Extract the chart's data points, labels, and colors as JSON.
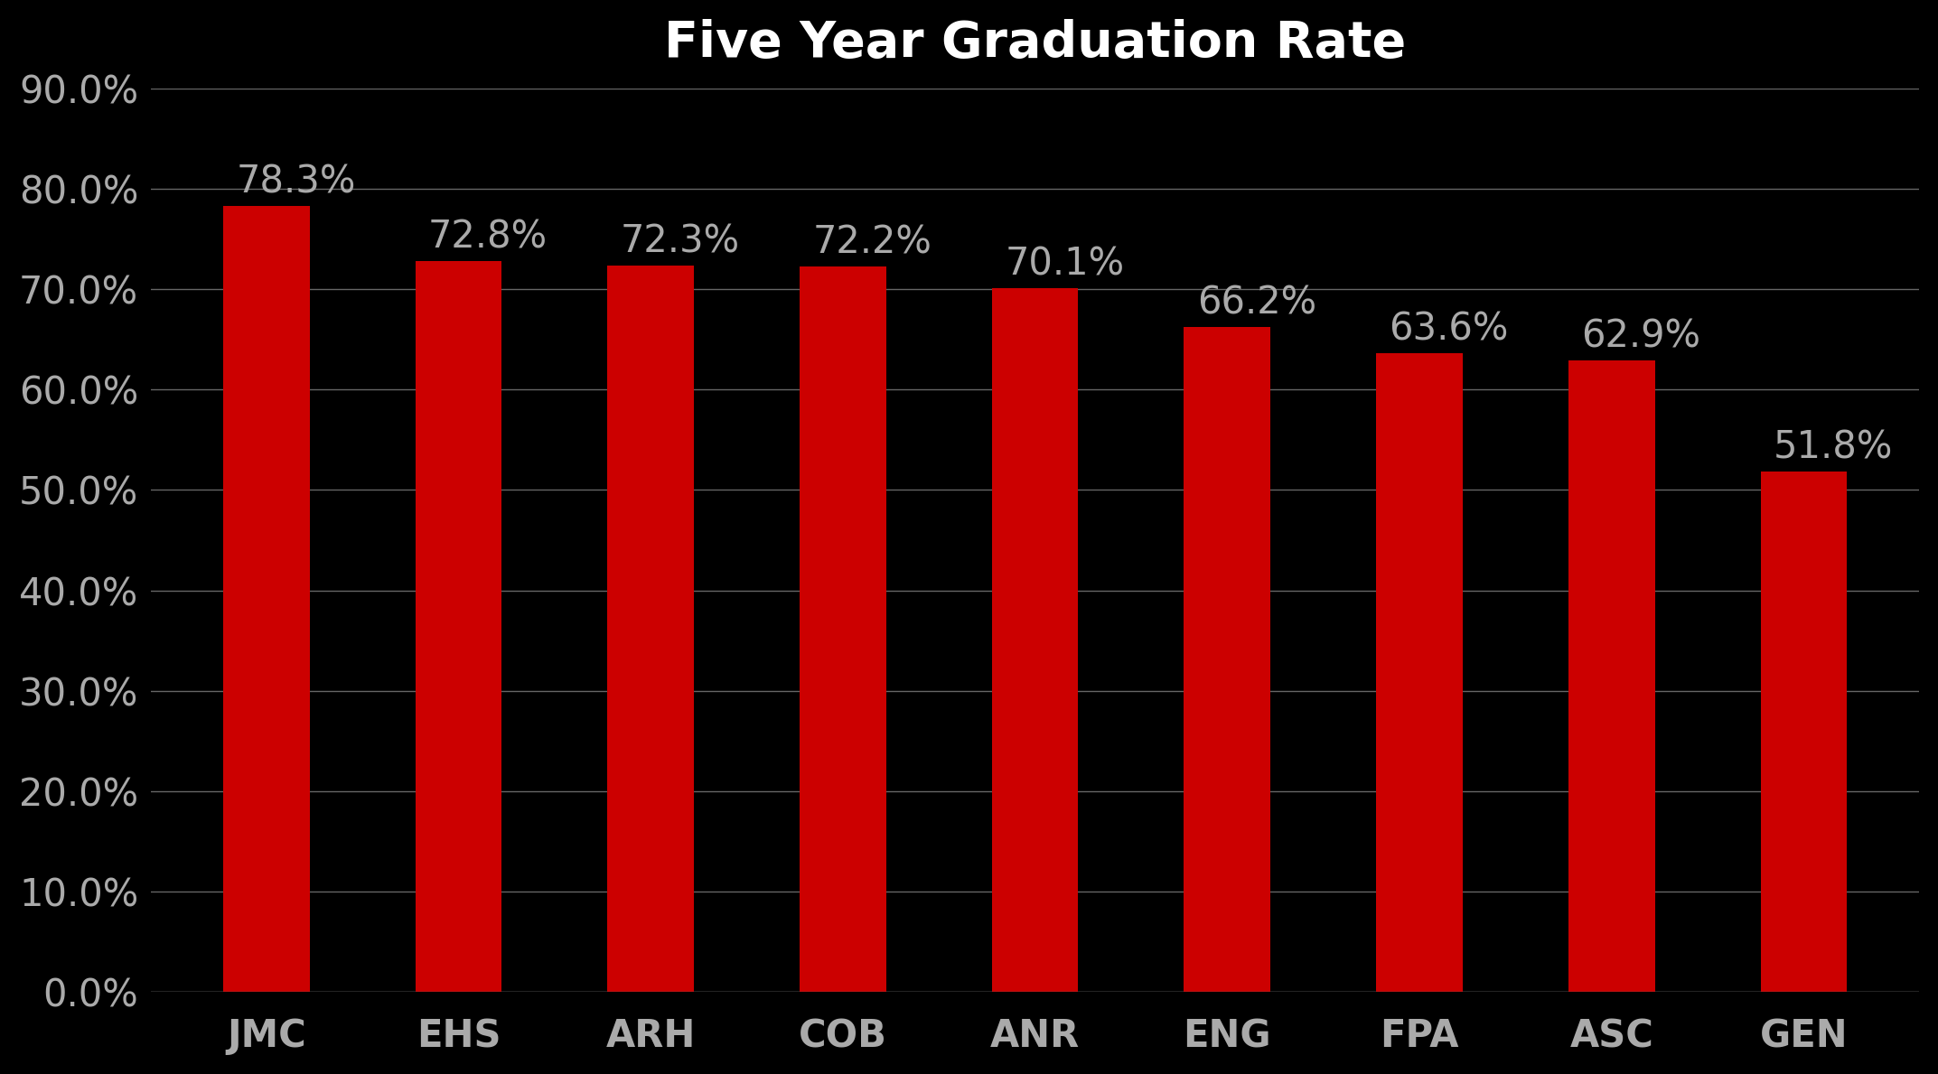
{
  "title": "Five Year Graduation Rate",
  "categories": [
    "JMC",
    "EHS",
    "ARH",
    "COB",
    "ANR",
    "ENG",
    "FPA",
    "ASC",
    "GEN"
  ],
  "values": [
    78.3,
    72.8,
    72.3,
    72.2,
    70.1,
    66.2,
    63.6,
    62.9,
    51.8
  ],
  "bar_color": "#cc0000",
  "background_color": "#000000",
  "text_color": "#aaaaaa",
  "label_color": "#aaaaaa",
  "grid_color": "#666666",
  "title_color": "#ffffff",
  "title_fontsize": 40,
  "tick_fontsize": 30,
  "annotation_fontsize": 30,
  "ylim": [
    0,
    90
  ],
  "yticks": [
    0,
    10,
    20,
    30,
    40,
    50,
    60,
    70,
    80,
    90
  ],
  "bar_width": 0.45,
  "figsize": [
    21.45,
    11.89
  ],
  "dpi": 100
}
